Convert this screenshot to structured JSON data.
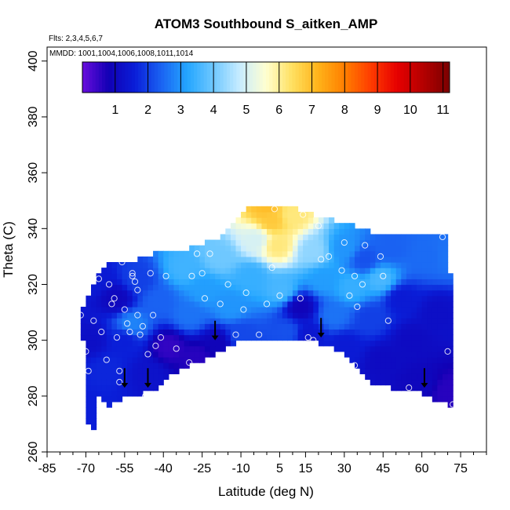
{
  "chart_data": {
    "type": "heatmap",
    "title": "ATOM3 Southbound S_aitken_AMP",
    "flights_note": "Flts: 2,3,4,5,6,7",
    "mmdd_note": "MMDD: 1001,1004,1006,1008,1011,1014",
    "xlabel": "Latitude (deg N)",
    "ylabel": "Theta (C)",
    "xlim": [
      -85,
      85
    ],
    "ylim": [
      260,
      405
    ],
    "x_major_ticks": [
      -85,
      -70,
      -55,
      -40,
      -25,
      -10,
      5,
      15,
      30,
      45,
      60,
      75
    ],
    "x_major_tick_labels": [
      "-85",
      "-70",
      "-55",
      "-40",
      "-25",
      "-10",
      "5",
      "15",
      "30",
      "45",
      "60",
      "75"
    ],
    "x_minor_ticks": [
      -80,
      -75,
      -65,
      -60,
      -50,
      -45,
      -35,
      -30,
      -20,
      -15,
      -5,
      0,
      10,
      20,
      25,
      35,
      40,
      50,
      55,
      65,
      70,
      80,
      85
    ],
    "y_ticks": [
      260,
      280,
      300,
      320,
      340,
      360,
      380,
      400
    ],
    "y_tick_labels": [
      "260",
      "280",
      "300",
      "320",
      "340",
      "360",
      "380",
      "400"
    ],
    "colorbar": {
      "range": [
        0,
        11.2
      ],
      "ticks": [
        1,
        2,
        3,
        4,
        5,
        6,
        7,
        8,
        9,
        10,
        11
      ],
      "tick_labels": [
        "1",
        "2",
        "3",
        "4",
        "5",
        "6",
        "7",
        "8",
        "9",
        "10",
        "11"
      ],
      "colors": [
        "#6a0ddd",
        "#1100b4",
        "#0a1ed8",
        "#1a62f2",
        "#24a6ff",
        "#6fc8ff",
        "#c8ecff",
        "#ffffd0",
        "#ffe060",
        "#ffb218",
        "#ff7e00",
        "#ff3c00",
        "#e60000",
        "#b40000",
        "#7a0000"
      ]
    },
    "coverage": {
      "lower_boundary": [
        [
          -72,
          309
        ],
        [
          -70,
          290
        ],
        [
          -69,
          270
        ],
        [
          -68,
          262
        ],
        [
          -67,
          268
        ],
        [
          -65,
          280
        ],
        [
          -62,
          276
        ],
        [
          -57,
          279
        ],
        [
          -52,
          280
        ],
        [
          -48,
          281
        ],
        [
          -43,
          283
        ],
        [
          -38,
          287
        ],
        [
          -30,
          291
        ],
        [
          -22,
          294
        ],
        [
          -16,
          297
        ],
        [
          -10,
          300
        ],
        [
          -5,
          301
        ],
        [
          0,
          301
        ],
        [
          5,
          301
        ],
        [
          10,
          300.5
        ],
        [
          15,
          300
        ],
        [
          20,
          299
        ],
        [
          25,
          298
        ],
        [
          30,
          295
        ],
        [
          35,
          290
        ],
        [
          40,
          285
        ],
        [
          45,
          284
        ],
        [
          50,
          282
        ],
        [
          55,
          281.5
        ],
        [
          60,
          281
        ],
        [
          65,
          279
        ],
        [
          70,
          277
        ],
        [
          72,
          276
        ]
      ],
      "upper_boundary": [
        [
          -72,
          309
        ],
        [
          -66,
          322
        ],
        [
          -60,
          328
        ],
        [
          -50,
          329
        ],
        [
          -40,
          332
        ],
        [
          -30,
          333
        ],
        [
          -20,
          336
        ],
        [
          -12,
          342
        ],
        [
          -8,
          348
        ],
        [
          -2,
          349
        ],
        [
          5,
          348
        ],
        [
          12,
          347
        ],
        [
          20,
          344
        ],
        [
          30,
          342
        ],
        [
          40,
          339
        ],
        [
          50,
          338
        ],
        [
          60,
          337.5
        ],
        [
          66,
          337
        ],
        [
          70,
          337
        ],
        [
          72,
          310
        ]
      ]
    },
    "field_samples": [
      {
        "lat": -70,
        "theta": 275,
        "value": 1.6
      },
      {
        "lat": -68,
        "theta": 300,
        "value": 1.2
      },
      {
        "lat": -62,
        "theta": 290,
        "value": 1.7
      },
      {
        "lat": -58,
        "theta": 315,
        "value": 1.0
      },
      {
        "lat": -55,
        "theta": 300,
        "value": 1.6
      },
      {
        "lat": -52,
        "theta": 306,
        "value": 2.8
      },
      {
        "lat": -50,
        "theta": 322,
        "value": 2.0
      },
      {
        "lat": -46,
        "theta": 288,
        "value": 1.3
      },
      {
        "lat": -42,
        "theta": 314,
        "value": 2.4
      },
      {
        "lat": -38,
        "theta": 298,
        "value": 0.5
      },
      {
        "lat": -32,
        "theta": 326,
        "value": 3.5
      },
      {
        "lat": -30,
        "theta": 309,
        "value": 2.6
      },
      {
        "lat": -27,
        "theta": 294,
        "value": 0.6
      },
      {
        "lat": -24,
        "theta": 318,
        "value": 3.1
      },
      {
        "lat": -19,
        "theta": 299,
        "value": 0.9
      },
      {
        "lat": -18,
        "theta": 330,
        "value": 4.0
      },
      {
        "lat": -14,
        "theta": 312,
        "value": 3.0
      },
      {
        "lat": -10,
        "theta": 302,
        "value": 2.1
      },
      {
        "lat": -6,
        "theta": 323,
        "value": 3.4
      },
      {
        "lat": -4,
        "theta": 336,
        "value": 5.0
      },
      {
        "lat": 2,
        "theta": 343,
        "value": 6.8
      },
      {
        "lat": 4,
        "theta": 334,
        "value": 6.2
      },
      {
        "lat": 6,
        "theta": 318,
        "value": 3.6
      },
      {
        "lat": 8,
        "theta": 303,
        "value": 2.2
      },
      {
        "lat": 13,
        "theta": 312,
        "value": 0.9
      },
      {
        "lat": 16,
        "theta": 302,
        "value": 1.4
      },
      {
        "lat": 18,
        "theta": 332,
        "value": 4.3
      },
      {
        "lat": 22,
        "theta": 322,
        "value": 3.1
      },
      {
        "lat": 26,
        "theta": 309,
        "value": 2.6
      },
      {
        "lat": 30,
        "theta": 298,
        "value": 1.5
      },
      {
        "lat": 30,
        "theta": 333,
        "value": 3.0
      },
      {
        "lat": 33,
        "theta": 319,
        "value": 3.4
      },
      {
        "lat": 38,
        "theta": 329,
        "value": 2.2
      },
      {
        "lat": 40,
        "theta": 308,
        "value": 2.0
      },
      {
        "lat": 44,
        "theta": 322,
        "value": 3.6
      },
      {
        "lat": 45,
        "theta": 293,
        "value": 1.1
      },
      {
        "lat": 48,
        "theta": 333,
        "value": 2.4
      },
      {
        "lat": 52,
        "theta": 315,
        "value": 1.5
      },
      {
        "lat": 56,
        "theta": 300,
        "value": 1.1
      },
      {
        "lat": 60,
        "theta": 285,
        "value": 1.0
      },
      {
        "lat": 62,
        "theta": 330,
        "value": 2.5
      },
      {
        "lat": 66,
        "theta": 310,
        "value": 1.2
      },
      {
        "lat": 70,
        "theta": 282,
        "value": 0.6
      },
      {
        "lat": 70,
        "theta": 330,
        "value": 2.6
      },
      {
        "lat": -66,
        "theta": 322,
        "value": 1.5
      },
      {
        "lat": 0,
        "theta": 348,
        "value": 7.0
      },
      {
        "lat": 10,
        "theta": 345,
        "value": 6.2
      }
    ],
    "observation_points": [
      [
        -72,
        309
      ],
      [
        -69,
        289
      ],
      [
        -67,
        307
      ],
      [
        -65,
        322
      ],
      [
        -64,
        303
      ],
      [
        -62,
        293
      ],
      [
        -61,
        320
      ],
      [
        -60,
        313
      ],
      [
        -59,
        315
      ],
      [
        -58,
        301
      ],
      [
        -57,
        289
      ],
      [
        -57,
        285
      ],
      [
        -56,
        328
      ],
      [
        -55,
        311
      ],
      [
        -54,
        306
      ],
      [
        -53,
        303
      ],
      [
        -52,
        324
      ],
      [
        -52,
        323
      ],
      [
        -51,
        321
      ],
      [
        -50,
        318
      ],
      [
        -50,
        309
      ],
      [
        -49,
        302
      ],
      [
        -48,
        305
      ],
      [
        -47,
        280
      ],
      [
        -46,
        295
      ],
      [
        -45,
        324
      ],
      [
        -44,
        309
      ],
      [
        -43,
        298
      ],
      [
        -41,
        301
      ],
      [
        -39,
        323
      ],
      [
        -35,
        297
      ],
      [
        -30,
        292
      ],
      [
        -29,
        323
      ],
      [
        -27,
        331
      ],
      [
        -25,
        324
      ],
      [
        -24,
        315
      ],
      [
        -22,
        331
      ],
      [
        -18,
        313
      ],
      [
        -15,
        320
      ],
      [
        -12,
        302
      ],
      [
        -8,
        317
      ],
      [
        -3,
        302
      ],
      [
        0,
        313
      ],
      [
        2,
        326
      ],
      [
        3,
        347
      ],
      [
        5,
        316
      ],
      [
        13,
        315
      ],
      [
        14,
        345
      ],
      [
        16,
        301
      ],
      [
        18,
        300
      ],
      [
        20,
        341
      ],
      [
        21,
        329
      ],
      [
        24,
        330
      ],
      [
        29,
        325
      ],
      [
        32,
        316
      ],
      [
        34,
        323
      ],
      [
        34,
        291
      ],
      [
        35,
        312
      ],
      [
        37,
        320
      ],
      [
        38,
        334
      ],
      [
        44,
        330
      ],
      [
        45,
        323
      ],
      [
        47,
        307
      ],
      [
        55,
        283
      ],
      [
        68,
        337
      ],
      [
        70,
        296
      ],
      [
        72,
        277
      ],
      [
        -70,
        296
      ],
      [
        -9,
        311
      ],
      [
        30,
        335
      ]
    ],
    "flight_markers": [
      {
        "lat": -55,
        "theta": 284
      },
      {
        "lat": -46,
        "theta": 284
      },
      {
        "lat": -20,
        "theta": 301
      },
      {
        "lat": 21,
        "theta": 302
      },
      {
        "lat": 61,
        "theta": 284
      }
    ]
  }
}
